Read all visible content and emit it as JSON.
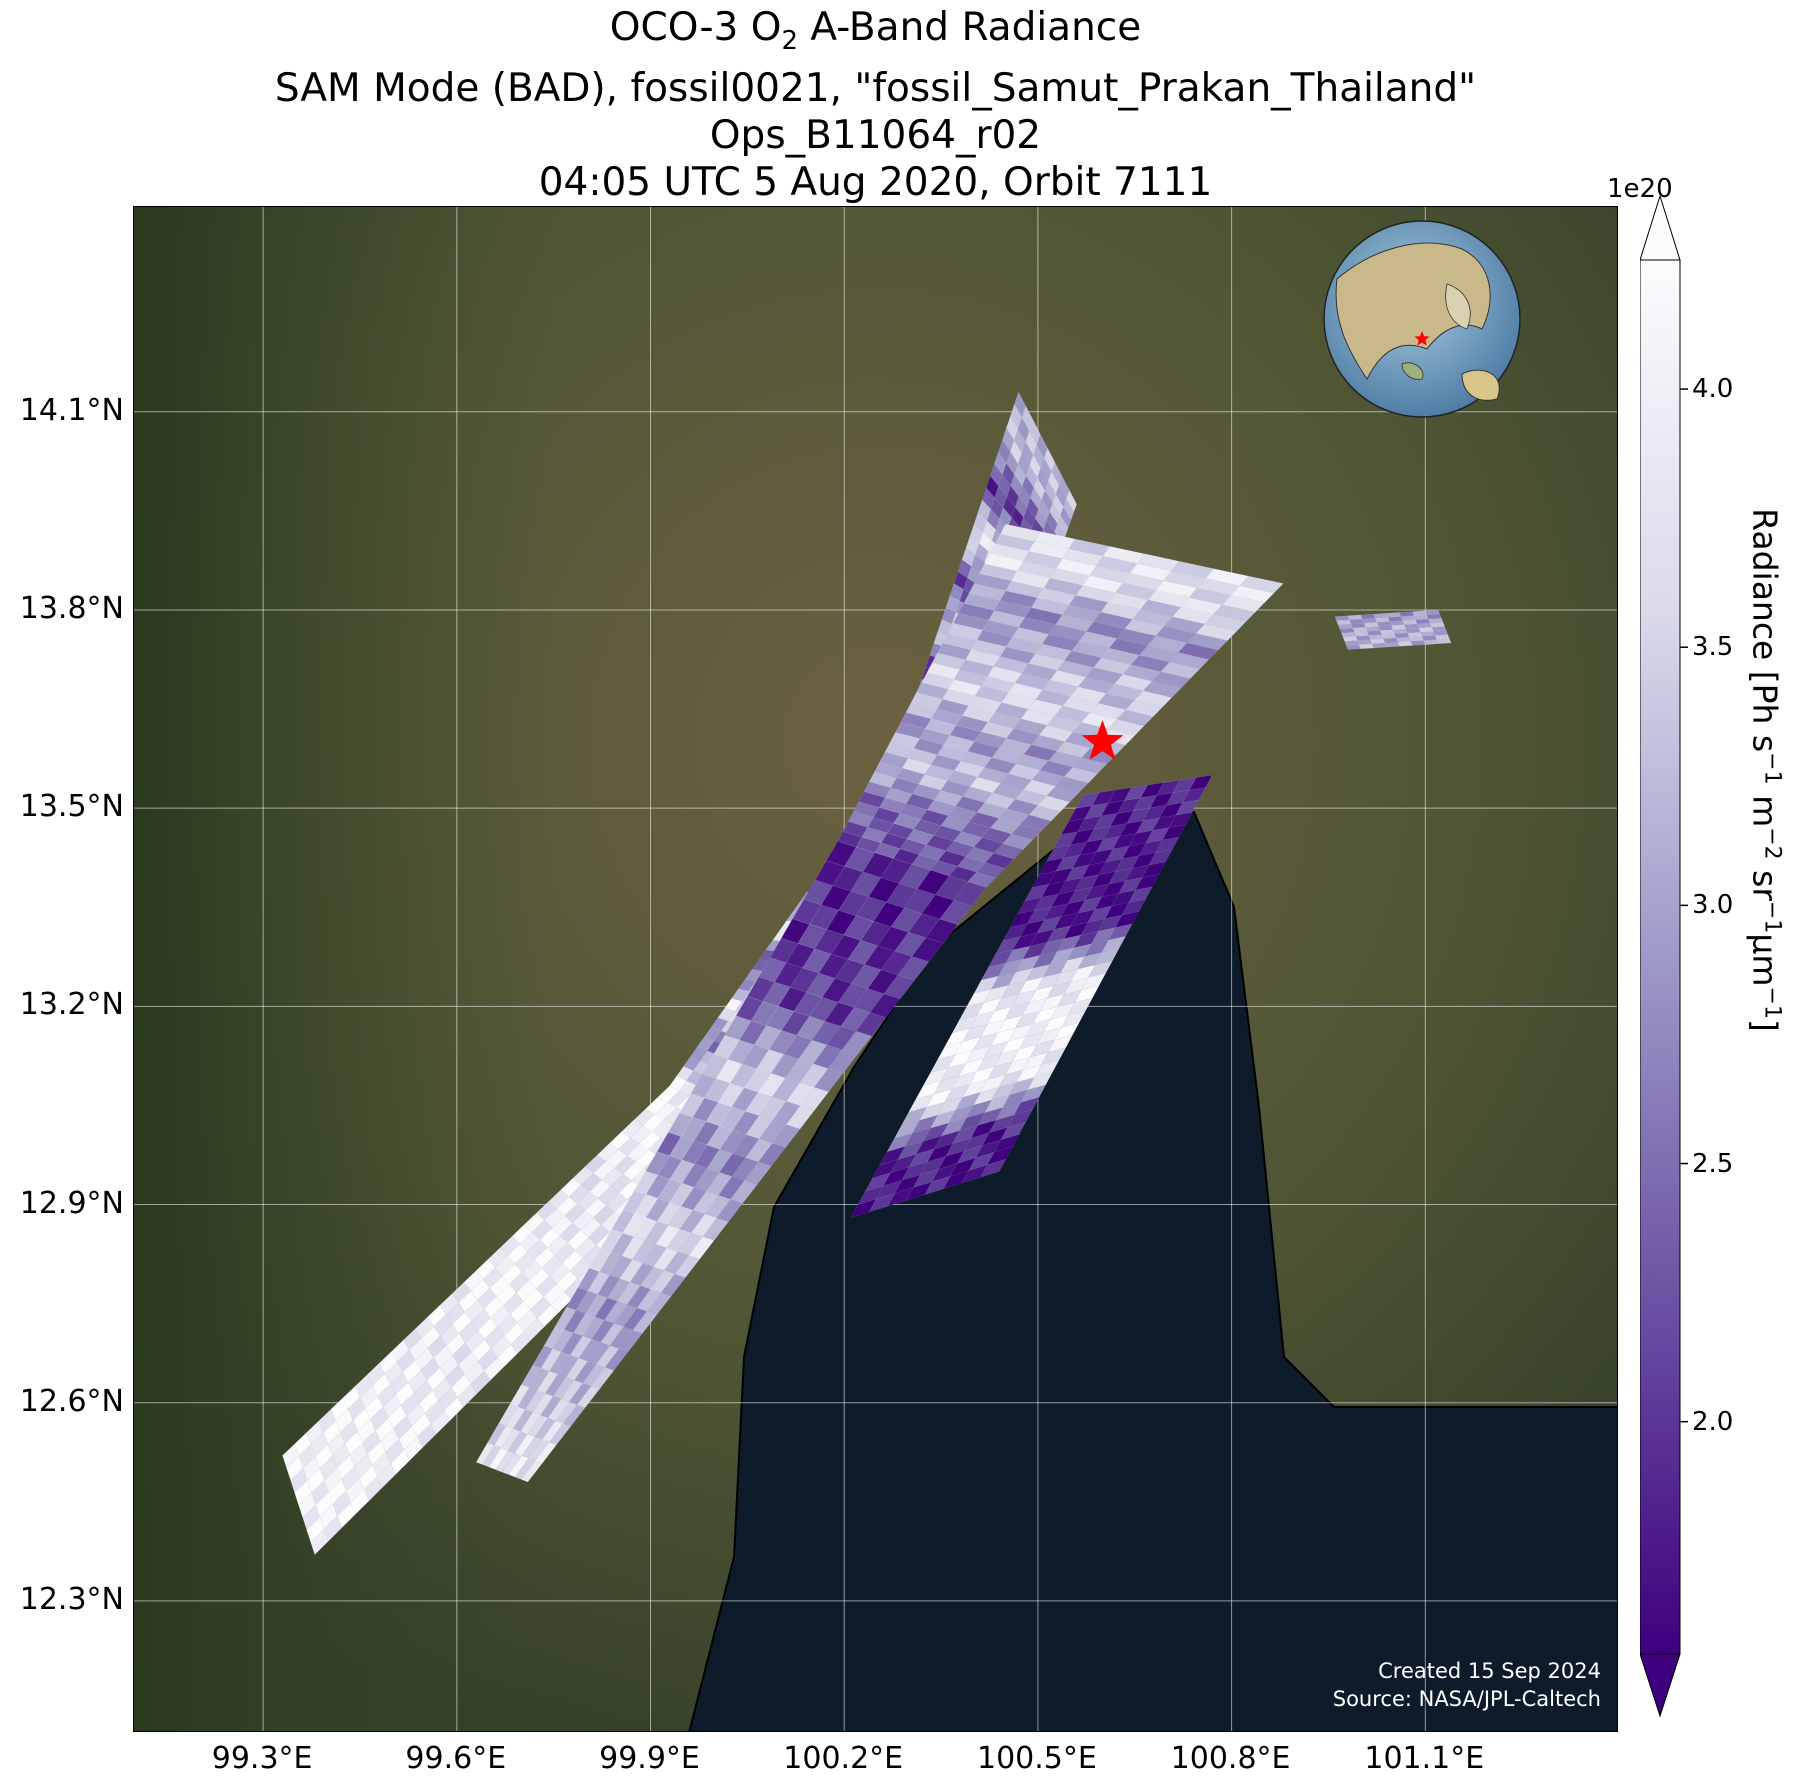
{
  "title": {
    "line1_pre": "OCO-3 O",
    "line1_sub": "2",
    "line1_post": " A-Band Radiance",
    "line2": "SAM Mode (BAD), fossil0021, \"fossil_Samut_Prakan_Thailand\"",
    "line3": "Ops_B11064_r02",
    "line4": "04:05 UTC 5 Aug 2020, Orbit 7111"
  },
  "axes": {
    "lat_ticks": [
      "14.1°N",
      "13.8°N",
      "13.5°N",
      "13.2°N",
      "12.9°N",
      "12.6°N",
      "12.3°N"
    ],
    "lat_values": [
      14.1,
      13.8,
      13.5,
      13.2,
      12.9,
      12.6,
      12.3
    ],
    "lon_ticks": [
      "99.3°E",
      "99.6°E",
      "99.9°E",
      "100.2°E",
      "100.5°E",
      "100.8°E",
      "101.1°E"
    ],
    "lon_values": [
      99.3,
      99.6,
      99.9,
      100.2,
      100.5,
      100.8,
      101.1
    ],
    "lon_range": [
      99.1,
      101.4
    ],
    "lat_range": [
      12.1,
      14.41
    ]
  },
  "colorbar": {
    "exponent": "1e20",
    "label_pre": "Radiance [Ph s",
    "label_parts": [
      "−1",
      " m",
      "−2",
      " sr",
      "−1",
      "μm",
      "−1",
      "]"
    ],
    "ticks": [
      "4.0",
      "3.5",
      "3.0",
      "2.5",
      "2.0"
    ],
    "tick_values": [
      4.0,
      3.5,
      3.0,
      2.5,
      2.0
    ],
    "range": [
      1.55,
      4.25
    ],
    "colormap": "Purples_r",
    "low_color": "#3f007d",
    "high_color": "#fcfbfd"
  },
  "target": {
    "name": "fossil_Samut_Prakan_Thailand",
    "lon": 100.6,
    "lat": 13.6,
    "marker": "red-star",
    "color": "#ff0000"
  },
  "inset": {
    "type": "globe",
    "marker": "red-star"
  },
  "credit": {
    "line1": "Created 15 Sep 2024",
    "line2": "Source: NASA/JPL-Caltech"
  },
  "colors": {
    "land": "#5b5a3a",
    "forest": "#2f3d22",
    "sea": "#0e1c2b",
    "coastline": "#000000",
    "gridline": "#ffffff"
  },
  "chart_data": {
    "type": "heatmap",
    "x_label": "",
    "y_label": "",
    "value_label": "Radiance [Ph s−1 m−2 sr−1μm−1]",
    "value_scale": "1e20",
    "swaths": [
      {
        "corners_lonlat": [
          [
            99.33,
            12.52
          ],
          [
            99.38,
            12.37
          ],
          [
            100.05,
            13.02
          ],
          [
            99.93,
            13.08
          ]
        ],
        "values_along_track": [
          4.1,
          4.1,
          4.0,
          3.9,
          4.1,
          4.0,
          3.8,
          4.1
        ]
      },
      {
        "corners_lonlat": [
          [
            99.93,
            13.08
          ],
          [
            100.05,
            13.02
          ],
          [
            100.42,
            13.58
          ],
          [
            100.27,
            13.55
          ]
        ],
        "values_along_track": [
          3.9,
          2.6,
          3.8,
          2.2,
          3.9,
          2.0,
          3.6,
          2.1
        ]
      },
      {
        "corners_lonlat": [
          [
            100.27,
            13.55
          ],
          [
            100.42,
            13.58
          ],
          [
            100.56,
            13.96
          ],
          [
            100.47,
            14.13
          ]
        ],
        "values_along_track": [
          2.4,
          3.6,
          1.9,
          3.4,
          2.2,
          3.8,
          2.0,
          3.2
        ]
      },
      {
        "corners_lonlat": [
          [
            99.63,
            12.51
          ],
          [
            99.71,
            12.48
          ],
          [
            100.42,
            13.38
          ],
          [
            100.19,
            13.45
          ]
        ],
        "values_along_track": [
          3.8,
          3.3,
          2.9,
          3.6,
          2.7,
          3.5,
          2.1,
          1.9
        ]
      },
      {
        "corners_lonlat": [
          [
            100.19,
            13.45
          ],
          [
            100.42,
            13.38
          ],
          [
            100.88,
            13.84
          ],
          [
            100.45,
            13.93
          ]
        ],
        "values_along_track": [
          2.2,
          2.5,
          3.3,
          2.9,
          3.6,
          3.2,
          2.8,
          3.7
        ]
      },
      {
        "corners_lonlat": [
          [
            100.21,
            12.88
          ],
          [
            100.44,
            12.95
          ],
          [
            100.77,
            13.55
          ],
          [
            100.57,
            13.52
          ]
        ],
        "values_along_track": [
          1.7,
          1.9,
          3.9,
          4.1,
          3.8,
          1.8,
          1.7,
          1.8
        ]
      },
      {
        "corners_lonlat": [
          [
            100.96,
            13.79
          ],
          [
            101.12,
            13.8
          ],
          [
            101.14,
            13.75
          ],
          [
            100.98,
            13.74
          ]
        ],
        "values_along_track": [
          2.9,
          3.1
        ]
      }
    ]
  }
}
